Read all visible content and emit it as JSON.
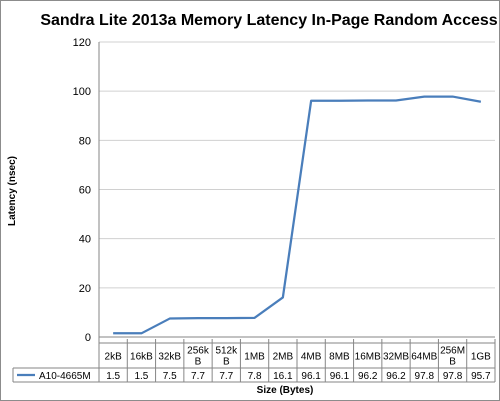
{
  "chart_data": {
    "type": "line",
    "title": "Sandra Lite 2013a Memory Latency In-Page Random Access",
    "xlabel": "Size (Bytes)",
    "ylabel": "Latency (nsec)",
    "ylim": [
      0,
      120
    ],
    "yticks": [
      0,
      20,
      40,
      60,
      80,
      100,
      120
    ],
    "y_tick_labels": [
      "0",
      "20",
      "40",
      "60",
      "80",
      "100",
      "120"
    ],
    "grid": "horizontal",
    "legend_position": "data-table-left",
    "categories": [
      "2kB",
      "16kB",
      "32kB",
      "256kB",
      "512kB",
      "1MB",
      "2MB",
      "4MB",
      "8MB",
      "16MB",
      "32MB",
      "64MB",
      "256MB",
      "1GB"
    ],
    "category_label_lines": [
      [
        "2kB"
      ],
      [
        "16kB"
      ],
      [
        "32kB"
      ],
      [
        "256k",
        "B"
      ],
      [
        "512k",
        "B"
      ],
      [
        "1MB"
      ],
      [
        "2MB"
      ],
      [
        "4MB"
      ],
      [
        "8MB"
      ],
      [
        "16MB"
      ],
      [
        "32MB"
      ],
      [
        "64MB"
      ],
      [
        "256M",
        "B"
      ],
      [
        "1GB"
      ]
    ],
    "series": [
      {
        "name": "A10-4665M",
        "color": "#4a7ebb",
        "values": [
          1.5,
          1.5,
          7.5,
          7.7,
          7.7,
          7.8,
          16.1,
          96.1,
          96.1,
          96.2,
          96.2,
          97.8,
          97.8,
          95.7
        ],
        "value_labels": [
          "1.5",
          "1.5",
          "7.5",
          "7.7",
          "7.7",
          "7.8",
          "16.1",
          "96.1",
          "96.1",
          "96.2",
          "96.2",
          "97.8",
          "97.8",
          "95.7"
        ]
      }
    ]
  }
}
